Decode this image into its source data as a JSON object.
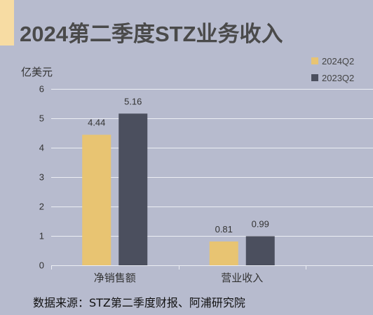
{
  "chart_data": {
    "type": "bar",
    "title": "2024第二季度STZ业务收入",
    "xlabel": "",
    "ylabel": "亿美元",
    "categories": [
      "净销售额",
      "营业收入"
    ],
    "series": [
      {
        "name": "2024Q2",
        "values": [
          4.44,
          0.81
        ],
        "color": "#e8c472"
      },
      {
        "name": "2023Q2",
        "values": [
          5.16,
          0.99
        ],
        "color": "#4b4f5e"
      }
    ],
    "ylim": [
      0,
      6
    ],
    "yticks": [
      0,
      1,
      2,
      3,
      4,
      5,
      6
    ],
    "data_labels": true,
    "grid": true,
    "legend": "top-right"
  },
  "footer": {
    "source": "数据来源：STZ第二季度财报、阿浦研究院"
  },
  "colors": {
    "background": "#b7bbce",
    "accent_bar": "#f7dca3",
    "title": "#4a4a4a",
    "text": "#333333",
    "grid": "#eceef4"
  }
}
